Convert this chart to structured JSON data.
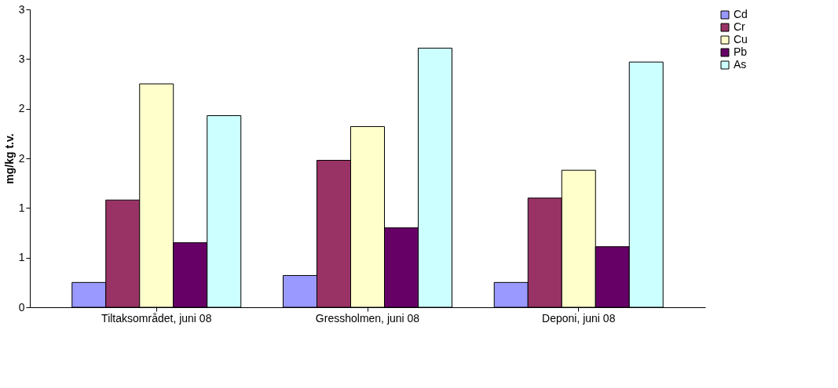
{
  "chart_data": {
    "type": "bar",
    "ylabel": "mg/kg t.v.",
    "categories": [
      "Tiltaksområdet, juni 08",
      "Gressholmen, juni 08",
      "Deponi, juni 08"
    ],
    "series": [
      {
        "name": "Cd",
        "color": "#9999ff",
        "values": [
          0.25,
          0.32,
          0.25
        ]
      },
      {
        "name": "Cr",
        "color": "#993366",
        "values": [
          1.08,
          1.48,
          1.1
        ]
      },
      {
        "name": "Cu",
        "color": "#ffffcc",
        "values": [
          2.25,
          1.82,
          1.38
        ]
      },
      {
        "name": "Pb",
        "color": "#660066",
        "values": [
          0.65,
          0.8,
          0.61
        ]
      },
      {
        "name": "As",
        "color": "#ccffff",
        "values": [
          1.93,
          2.61,
          2.47
        ]
      }
    ],
    "ylim": [
      0,
      3
    ],
    "yticks": [
      0,
      {
        "value": 0.5,
        "label": "1"
      },
      1,
      {
        "value": 1.5,
        "label": "2"
      },
      2,
      {
        "value": 2.5,
        "label": "3"
      },
      3
    ],
    "grid": false,
    "legend": "right"
  }
}
